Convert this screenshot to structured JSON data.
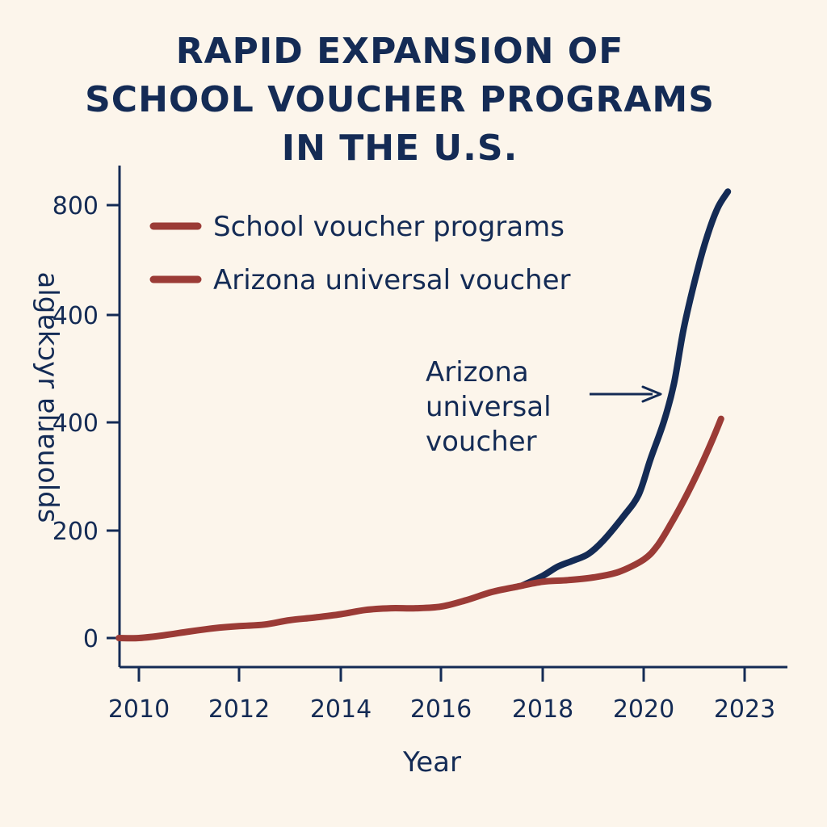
{
  "chart_data": {
    "type": "line",
    "title_lines": [
      "RAPID EXPANSION OF",
      "SCHOOL VOUCHER PROGRAMS",
      "IN THE U.S."
    ],
    "xlabel": "Year",
    "ylabel": "algɐkɔyr ɐlɹɐuolds",
    "x_ticks": [
      "2010",
      "2012",
      "2014",
      "2016",
      "2018",
      "2020",
      "2023"
    ],
    "y_ticks": [
      "0",
      "200",
      "400",
      "400",
      "800"
    ],
    "legend": [
      "School voucher programs",
      "Arizona universal voucher"
    ],
    "legend_position": "top-left",
    "annotation": {
      "lines": [
        "Arizona",
        "universal",
        "voucher"
      ]
    },
    "colors": {
      "navy": "#142b55",
      "red": "#9b3b36",
      "background": "#fcf5eb"
    },
    "series": [
      {
        "name": "Arizona universal voucher",
        "color": "#142b55",
        "points": [
          [
            2017.6,
            97
          ],
          [
            2018.0,
            115
          ],
          [
            2018.3,
            132
          ],
          [
            2018.6,
            143
          ],
          [
            2018.9,
            155
          ],
          [
            2019.2,
            180
          ],
          [
            2019.6,
            225
          ],
          [
            2019.9,
            265
          ],
          [
            2020.2,
            330
          ],
          [
            2020.6,
            400
          ],
          [
            2020.9,
            470
          ],
          [
            2021.2,
            575
          ],
          [
            2021.6,
            680
          ],
          [
            2021.9,
            745
          ],
          [
            2022.2,
            795
          ],
          [
            2022.5,
            825
          ]
        ]
      },
      {
        "name": "School voucher programs",
        "color": "#9b3b36",
        "points": [
          [
            2009.6,
            0
          ],
          [
            2010.0,
            0
          ],
          [
            2010.5,
            5
          ],
          [
            2011.0,
            12
          ],
          [
            2011.5,
            18
          ],
          [
            2012.0,
            22
          ],
          [
            2012.5,
            25
          ],
          [
            2013.0,
            33
          ],
          [
            2013.5,
            38
          ],
          [
            2014.0,
            44
          ],
          [
            2014.5,
            52
          ],
          [
            2015.0,
            55
          ],
          [
            2015.5,
            55
          ],
          [
            2016.0,
            58
          ],
          [
            2016.5,
            70
          ],
          [
            2017.0,
            85
          ],
          [
            2017.5,
            95
          ],
          [
            2018.0,
            104
          ],
          [
            2018.5,
            107
          ],
          [
            2019.0,
            112
          ],
          [
            2019.5,
            122
          ],
          [
            2020.0,
            145
          ],
          [
            2020.4,
            170
          ],
          [
            2020.8,
            210
          ],
          [
            2021.2,
            255
          ],
          [
            2021.6,
            305
          ],
          [
            2022.0,
            360
          ],
          [
            2022.3,
            405
          ]
        ]
      }
    ]
  }
}
